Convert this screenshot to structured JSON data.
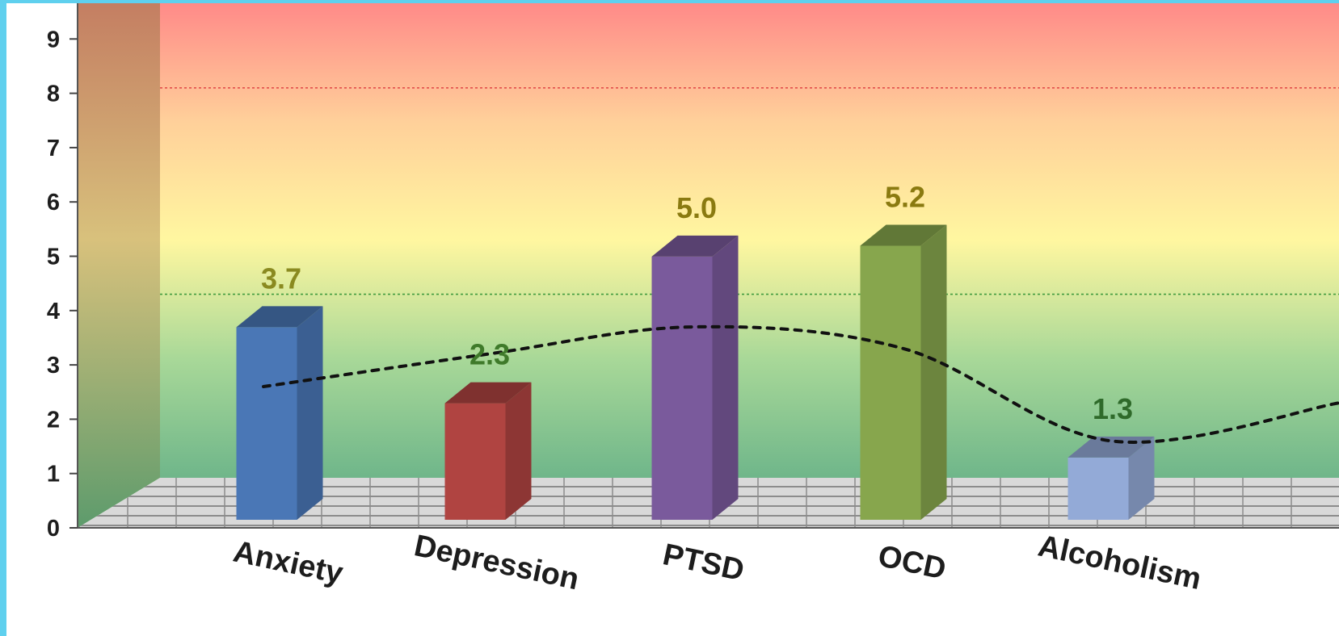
{
  "chart_data": {
    "type": "bar",
    "title": "",
    "xlabel": "",
    "ylabel": "",
    "ylim": [
      0,
      9.5
    ],
    "yticks": [
      0,
      1,
      2,
      3,
      4,
      5,
      6,
      7,
      8,
      9
    ],
    "categories": [
      "Anxiety",
      "Depression",
      "PTSD",
      "OCD",
      "Alcoholism"
    ],
    "series": [
      {
        "values": [
          3.7,
          2.3,
          5.0,
          5.2,
          1.3
        ],
        "value_labels": [
          "3.7",
          "2.3",
          "5.0",
          "5.2",
          "1.3"
        ],
        "colors": [
          "#4a77b6",
          "#b04441",
          "#7a5a9c",
          "#87a64d",
          "#93aad7"
        ],
        "label_colors": [
          "#8a8a20",
          "#3f7a2a",
          "#8a7a10",
          "#8a7a10",
          "#2f6a2a"
        ]
      }
    ],
    "trend_line": {
      "style": "dotted",
      "color": "#111111",
      "values": [
        2.6,
        3.2,
        3.7,
        3.3,
        1.6,
        2.3
      ]
    },
    "reference_lines": [
      {
        "value": 8.1,
        "color": "#e04545"
      },
      {
        "value": 4.3,
        "color": "#3f9a3f"
      }
    ],
    "background_gradient": [
      "#ff8a88",
      "#ffd09a",
      "#fff7a0",
      "#a8d898",
      "#6fb68a"
    ],
    "grid": "floor"
  }
}
